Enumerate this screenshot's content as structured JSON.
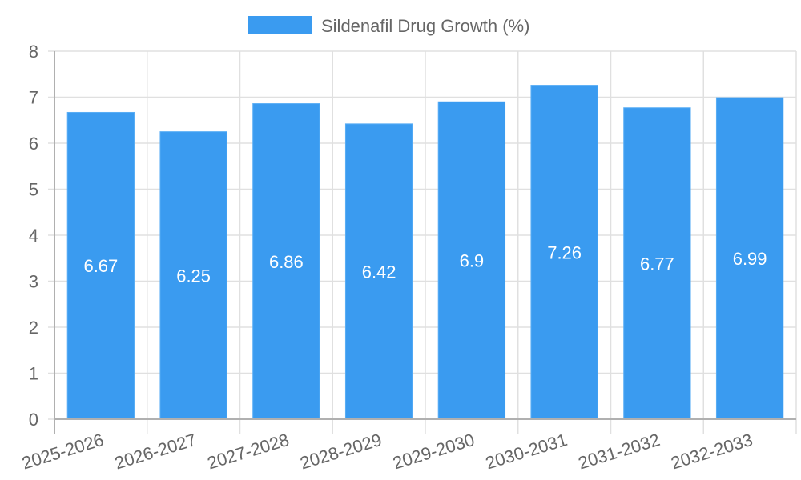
{
  "chart_data": {
    "type": "bar",
    "title": "",
    "xlabel": "",
    "ylabel": "",
    "categories": [
      "2025-2026",
      "2026-2027",
      "2027-2028",
      "2028-2029",
      "2029-2030",
      "2030-2031",
      "2031-2032",
      "2032-2033"
    ],
    "series": [
      {
        "name": "Sildenafil Drug Growth (%)",
        "values": [
          6.67,
          6.25,
          6.86,
          6.42,
          6.9,
          7.26,
          6.77,
          6.99
        ],
        "labels": [
          "6.67",
          "6.25",
          "6.86",
          "6.42",
          "6.9",
          "7.26",
          "6.77",
          "6.99"
        ],
        "color": "#3a9bf0"
      }
    ],
    "ylim": [
      0,
      8
    ],
    "yticks": [
      "0",
      "1",
      "2",
      "3",
      "4",
      "5",
      "6",
      "7",
      "8"
    ],
    "grid": true,
    "legend_position": "top-center"
  },
  "colors": {
    "bar": "#3a9bf0",
    "grid": "#e0e0e0",
    "axis": "#b0b0b0",
    "text": "#666666"
  }
}
